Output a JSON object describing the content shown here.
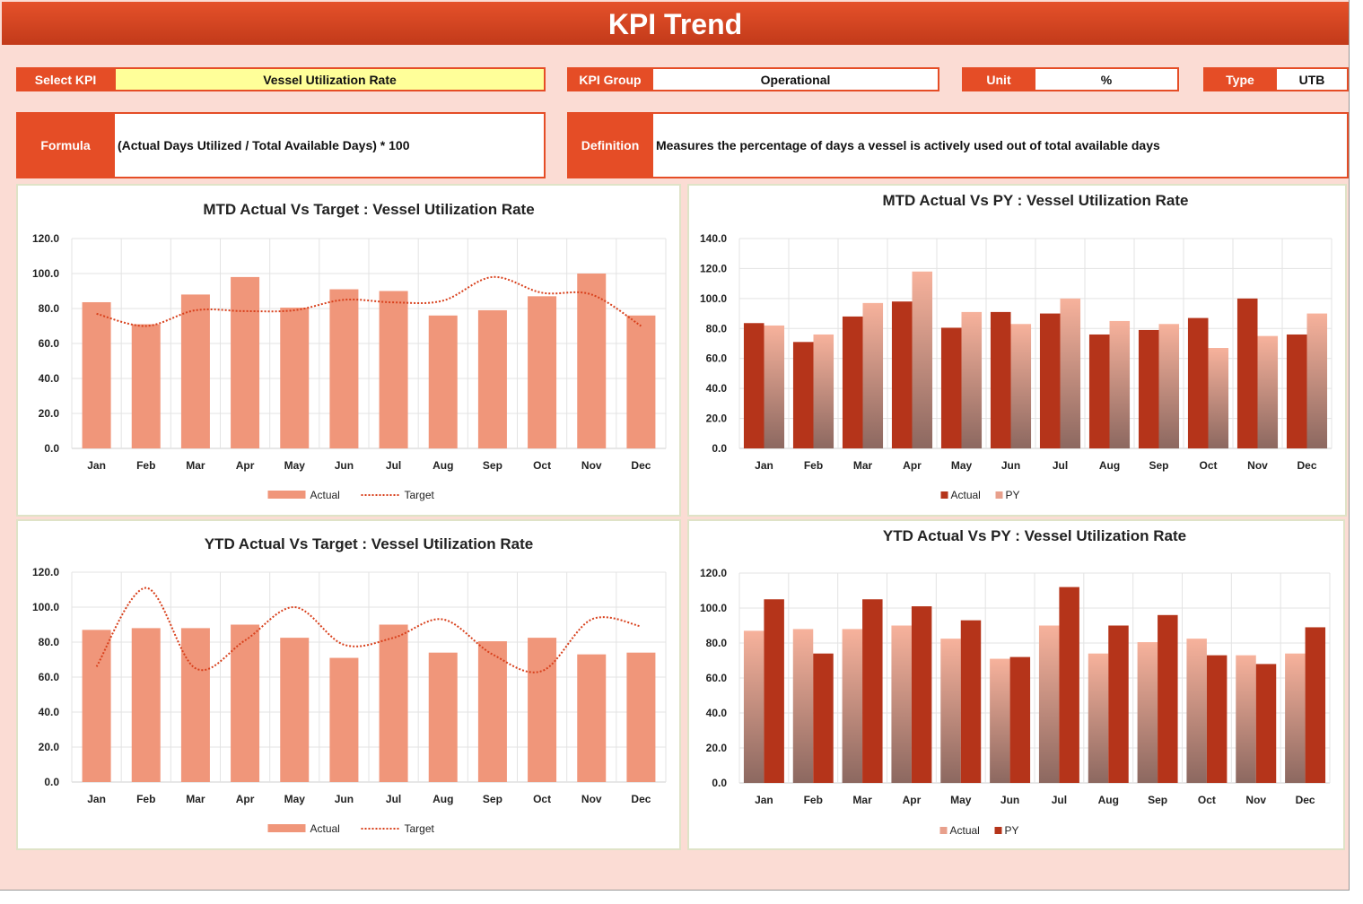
{
  "title": "KPI Trend",
  "fields": {
    "select_kpi_label": "Select KPI",
    "select_kpi_value": "Vessel Utilization Rate",
    "kpi_group_label": "KPI Group",
    "kpi_group_value": "Operational",
    "unit_label": "Unit",
    "unit_value": "%",
    "type_label": "Type",
    "type_value": "UTB",
    "formula_label": "Formula",
    "formula_value": "(Actual Days Utilized / Total Available Days) * 100",
    "definition_label": "Definition",
    "definition_value": "Measures the percentage of days a vessel is actively used out of total available days"
  },
  "colors": {
    "accent": "#e54d26",
    "actual_light": "#f0967a",
    "dark": "#b5341a",
    "target_line": "#d8401c"
  },
  "chart_data": [
    {
      "type": "bar+line",
      "title": "MTD Actual Vs Target : Vessel Utilization Rate",
      "categories": [
        "Jan",
        "Feb",
        "Mar",
        "Apr",
        "May",
        "Jun",
        "Jul",
        "Aug",
        "Sep",
        "Oct",
        "Nov",
        "Dec"
      ],
      "ylim": [
        0,
        120
      ],
      "yticks": [
        "0.0",
        "20.0",
        "40.0",
        "60.0",
        "80.0",
        "100.0",
        "120.0"
      ],
      "grid": true,
      "legend": "bottom",
      "series": [
        {
          "name": "Actual",
          "kind": "bar",
          "values": [
            83.6,
            71,
            88,
            98,
            80.5,
            91,
            90,
            76,
            79,
            87,
            100,
            76
          ]
        },
        {
          "name": "Target",
          "kind": "line",
          "values": [
            77,
            70,
            79,
            78.5,
            79,
            85,
            83.5,
            84.5,
            98,
            89,
            88,
            70
          ]
        }
      ]
    },
    {
      "type": "bar",
      "title": "MTD Actual Vs PY : Vessel Utilization Rate",
      "categories": [
        "Jan",
        "Feb",
        "Mar",
        "Apr",
        "May",
        "Jun",
        "Jul",
        "Aug",
        "Sep",
        "Oct",
        "Nov",
        "Dec"
      ],
      "ylim": [
        0,
        140
      ],
      "yticks": [
        "0.0",
        "20.0",
        "40.0",
        "60.0",
        "80.0",
        "100.0",
        "120.0",
        "140.0"
      ],
      "grid": true,
      "legend": "bottom",
      "series": [
        {
          "name": "Actual",
          "kind": "bar",
          "values": [
            83.6,
            71,
            88,
            98,
            80.5,
            91,
            90,
            76,
            79,
            87,
            100,
            76
          ]
        },
        {
          "name": "PY",
          "kind": "bar",
          "values": [
            82,
            76,
            97,
            118,
            91,
            83,
            100,
            85,
            83,
            67,
            75,
            90
          ]
        }
      ]
    },
    {
      "type": "bar+line",
      "title": "YTD Actual Vs Target : Vessel Utilization Rate",
      "categories": [
        "Jan",
        "Feb",
        "Mar",
        "Apr",
        "May",
        "Jun",
        "Jul",
        "Aug",
        "Sep",
        "Oct",
        "Nov",
        "Dec"
      ],
      "ylim": [
        0,
        120
      ],
      "yticks": [
        "0.0",
        "20.0",
        "40.0",
        "60.0",
        "80.0",
        "100.0",
        "120.0"
      ],
      "grid": true,
      "legend": "bottom",
      "series": [
        {
          "name": "Actual",
          "kind": "bar",
          "values": [
            87,
            88,
            88,
            90,
            82.5,
            71,
            90,
            74,
            80.5,
            82.5,
            73,
            74
          ]
        },
        {
          "name": "Target",
          "kind": "line",
          "values": [
            66,
            111,
            65,
            81,
            100,
            78.5,
            82.5,
            93,
            73,
            63.5,
            93,
            89
          ]
        }
      ]
    },
    {
      "type": "bar",
      "title": "YTD Actual Vs PY : Vessel Utilization Rate",
      "categories": [
        "Jan",
        "Feb",
        "Mar",
        "Apr",
        "May",
        "Jun",
        "Jul",
        "Aug",
        "Sep",
        "Oct",
        "Nov",
        "Dec"
      ],
      "ylim": [
        0,
        120
      ],
      "yticks": [
        "0.0",
        "20.0",
        "40.0",
        "60.0",
        "80.0",
        "100.0",
        "120.0"
      ],
      "grid": true,
      "legend": "bottom",
      "series": [
        {
          "name": "Actual",
          "kind": "bar",
          "values": [
            87,
            88,
            88,
            90,
            82.5,
            71,
            90,
            74,
            80.5,
            82.5,
            73,
            74
          ]
        },
        {
          "name": "PY",
          "kind": "bar",
          "values": [
            105,
            74,
            105,
            101,
            93,
            72,
            112,
            90,
            96,
            73,
            68,
            89
          ]
        }
      ]
    }
  ]
}
